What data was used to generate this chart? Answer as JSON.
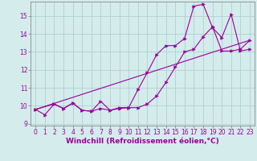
{
  "xlabel": "Windchill (Refroidissement éolien,°C)",
  "background_color": "#d4ecec",
  "grid_color": "#b0d0d0",
  "line_color": "#990099",
  "tick_color": "#990099",
  "xlim": [
    -0.5,
    23.5
  ],
  "ylim": [
    8.9,
    15.8
  ],
  "yticks": [
    9,
    10,
    11,
    12,
    13,
    14,
    15
  ],
  "xticks": [
    0,
    1,
    2,
    3,
    4,
    5,
    6,
    7,
    8,
    9,
    10,
    11,
    12,
    13,
    14,
    15,
    16,
    17,
    18,
    19,
    20,
    21,
    22,
    23
  ],
  "line1_x": [
    0,
    1,
    2,
    3,
    4,
    5,
    6,
    7,
    8,
    9,
    10,
    11,
    12,
    13,
    14,
    15,
    16,
    17,
    18,
    19,
    20,
    21,
    22,
    23
  ],
  "line1_y": [
    9.8,
    9.5,
    10.1,
    9.85,
    10.15,
    9.75,
    9.7,
    9.85,
    9.75,
    9.85,
    9.9,
    9.9,
    10.1,
    10.55,
    11.3,
    12.15,
    13.0,
    13.15,
    13.85,
    14.4,
    13.05,
    13.05,
    13.15,
    13.65
  ],
  "line2_x": [
    0,
    2,
    3,
    4,
    5,
    6,
    7,
    8,
    9,
    10,
    11,
    12,
    13,
    14,
    15,
    16,
    17,
    18,
    19,
    20,
    21,
    22,
    23
  ],
  "line2_y": [
    9.8,
    10.1,
    9.85,
    10.15,
    9.75,
    9.7,
    10.25,
    9.75,
    9.9,
    9.9,
    10.9,
    11.85,
    12.85,
    13.35,
    13.35,
    13.75,
    15.55,
    15.65,
    14.35,
    13.8,
    15.1,
    13.05,
    13.15
  ],
  "line3_x": [
    0,
    23
  ],
  "line3_y": [
    9.8,
    13.65
  ],
  "tick_fontsize": 5.5,
  "xlabel_fontsize": 6.5
}
